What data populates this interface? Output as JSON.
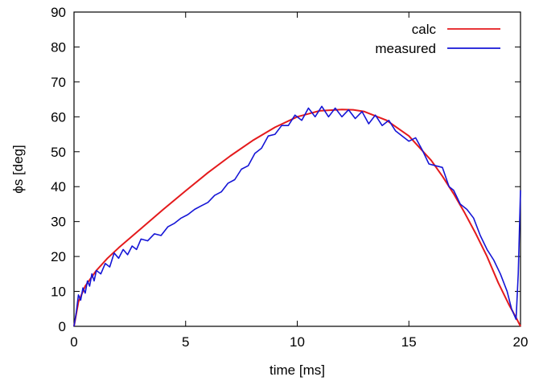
{
  "chart_data": {
    "type": "line",
    "xlabel": "time [ms]",
    "ylabel": "ϕs [deg]",
    "xlim": [
      0,
      20
    ],
    "ylim": [
      0,
      90
    ],
    "xticks": [
      "0",
      "5",
      "10",
      "15",
      "20"
    ],
    "yticks": [
      "0",
      "10",
      "20",
      "30",
      "40",
      "50",
      "60",
      "70",
      "80",
      "90"
    ],
    "grid": false,
    "legend_position": "top-right",
    "series": [
      {
        "name": "calc",
        "color": "#e41a1c",
        "x": [
          0,
          0.2,
          0.5,
          1,
          1.5,
          2,
          3,
          4,
          5,
          6,
          7,
          8,
          9,
          10,
          11,
          12,
          12.5,
          13,
          14,
          15,
          16,
          16.5,
          17,
          17.5,
          18,
          18.5,
          19,
          19.5,
          19.8,
          20
        ],
        "y": [
          0,
          7,
          11.5,
          16,
          19.5,
          22.5,
          28,
          33.5,
          38.8,
          44,
          48.8,
          53.2,
          57,
          60,
          61.7,
          62.1,
          62,
          61.5,
          59,
          54.5,
          47.5,
          43,
          38,
          32.5,
          26.5,
          20,
          12.5,
          6,
          2.5,
          0
        ]
      },
      {
        "name": "measured",
        "color": "#1515d6",
        "x": [
          0,
          0.1,
          0.2,
          0.3,
          0.4,
          0.5,
          0.6,
          0.7,
          0.8,
          0.9,
          1,
          1.2,
          1.4,
          1.6,
          1.8,
          2,
          2.2,
          2.4,
          2.6,
          2.8,
          3,
          3.3,
          3.6,
          3.9,
          4.2,
          4.5,
          4.8,
          5.1,
          5.4,
          5.7,
          6,
          6.3,
          6.6,
          6.9,
          7.2,
          7.5,
          7.8,
          8.1,
          8.4,
          8.7,
          9,
          9.3,
          9.6,
          9.9,
          10.2,
          10.5,
          10.8,
          11.1,
          11.4,
          11.7,
          12,
          12.3,
          12.6,
          12.9,
          13.2,
          13.5,
          13.8,
          14.1,
          14.4,
          14.7,
          15,
          15.3,
          15.6,
          15.9,
          16.2,
          16.5,
          16.8,
          17,
          17.3,
          17.6,
          17.9,
          18.2,
          18.5,
          18.8,
          19.1,
          19.4,
          19.6,
          19.8,
          19.9,
          20
        ],
        "y": [
          0,
          4,
          9,
          7.5,
          11,
          9.5,
          13,
          11.5,
          15,
          13,
          16,
          15,
          18,
          17,
          21,
          19.5,
          22,
          20.5,
          23,
          22,
          25,
          24.5,
          26.5,
          26,
          28.5,
          29.5,
          31,
          32,
          33.5,
          34.5,
          35.5,
          37.5,
          38.5,
          41,
          42,
          45,
          46,
          49.5,
          51,
          54.5,
          55,
          57.5,
          57.5,
          60.5,
          59,
          62.5,
          60,
          63,
          60,
          62.5,
          60,
          62,
          59.5,
          61.5,
          58,
          60.5,
          57.5,
          59,
          56,
          54.5,
          53,
          54,
          50.5,
          46.5,
          46,
          45.5,
          40,
          39,
          35,
          33.5,
          31,
          26,
          22,
          19,
          15,
          10,
          5,
          2,
          15,
          39
        ]
      }
    ]
  }
}
